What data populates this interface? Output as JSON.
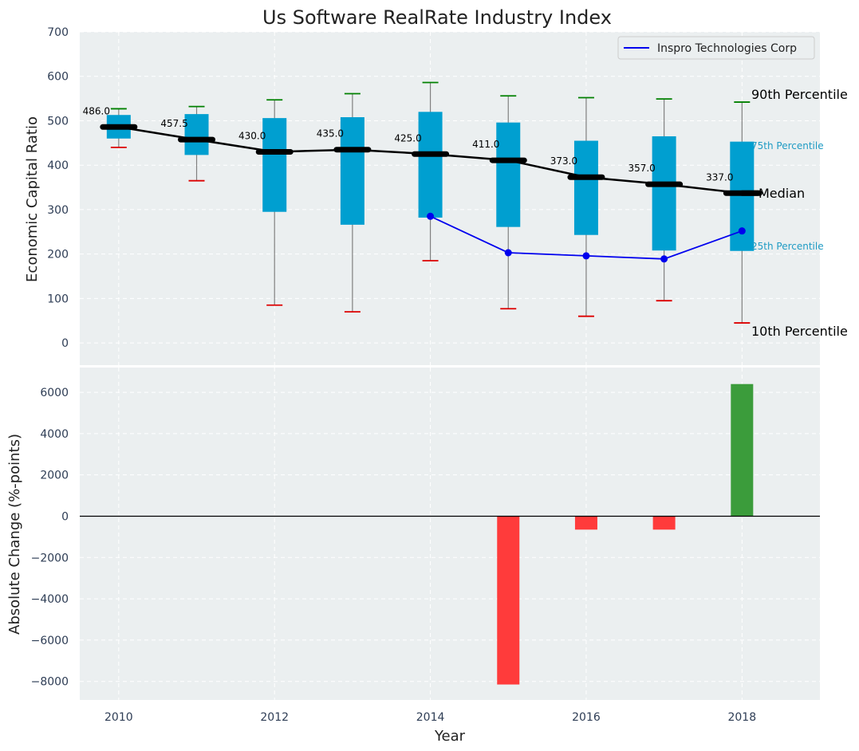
{
  "colors": {
    "panel_bg": "#ebeff0",
    "grid": "#ffffff",
    "box_fill": "#009fd0",
    "whisker": "#808080",
    "cap_high": "#008000",
    "cap_low": "#dd0000",
    "median_line": "#000000",
    "company_line": "#0000ee",
    "bar_pos": "#3b9c3b",
    "bar_neg": "#ff3b3b",
    "annot_small": "#1f9bc4"
  },
  "chart_data": [
    {
      "type": "box",
      "title": "Us Software RealRate Industry Index",
      "ylabel": "Economic Capital Ratio",
      "xlabel": "",
      "ylim": [
        -50,
        700
      ],
      "xlim": [
        2009.5,
        2019
      ],
      "yticks": [
        "0",
        "100",
        "200",
        "300",
        "400",
        "500",
        "600",
        "700"
      ],
      "years": [
        2010,
        2011,
        2012,
        2013,
        2014,
        2015,
        2016,
        2017,
        2018
      ],
      "p10": [
        440,
        365,
        85,
        70,
        185,
        77,
        60,
        95,
        45
      ],
      "p25": [
        460,
        423,
        295,
        266,
        282,
        261,
        243,
        208,
        207
      ],
      "median": [
        486,
        457.5,
        430,
        435,
        425,
        411,
        373,
        357,
        337
      ],
      "median_labels": [
        "486.0",
        "457.5",
        "430.0",
        "435.0",
        "425.0",
        "411.0",
        "373.0",
        "357.0",
        "337.0"
      ],
      "p75": [
        513,
        515,
        506,
        508,
        520,
        496,
        455,
        465,
        453
      ],
      "p90": [
        527,
        532,
        547,
        561,
        586,
        556,
        552,
        549,
        542
      ],
      "company": {
        "name": "Inspro Technologies Corp",
        "years": [
          2014,
          2015,
          2016,
          2017,
          2018
        ],
        "values": [
          285,
          203,
          196,
          189,
          252
        ]
      },
      "legend": "upper right",
      "annotations": {
        "p90": "90th Percentile",
        "p75": "75th Percentile",
        "median": "Median",
        "p25": "25th Percentile",
        "p10": "10th Percentile"
      }
    },
    {
      "type": "bar",
      "ylabel": "Absolute Change (%-points)",
      "xlabel": "Year",
      "ylim": [
        -8900,
        7200
      ],
      "xlim": [
        2009.5,
        2019
      ],
      "yticks": [
        "−8000",
        "−6000",
        "−4000",
        "−2000",
        "0",
        "2000",
        "4000",
        "6000"
      ],
      "xticks": [
        "2010",
        "2012",
        "2014",
        "2016",
        "2018"
      ],
      "years": [
        2015,
        2016,
        2017,
        2018
      ],
      "values": [
        -8150,
        -650,
        -650,
        6400
      ]
    }
  ]
}
